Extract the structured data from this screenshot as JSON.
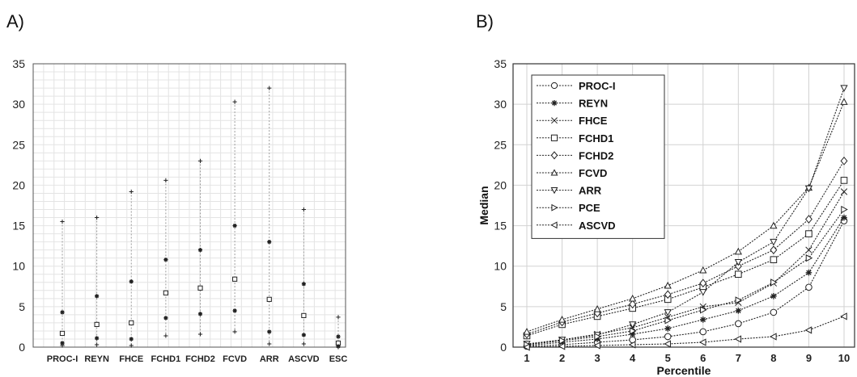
{
  "panel_a": {
    "label": "A)"
  },
  "panel_b": {
    "label": "B)"
  },
  "chart_data": [
    {
      "type": "scatter",
      "title": "",
      "xlabel": "",
      "ylabel": "",
      "ylim": [
        0,
        35
      ],
      "yticks": [
        0,
        5,
        10,
        15,
        20,
        25,
        30,
        35
      ],
      "grid": true,
      "categories": [
        "PROC-I",
        "REYN",
        "FHCE",
        "FCHD1",
        "FCHD2",
        "FCVD",
        "ARR",
        "ASCVD",
        "ESC"
      ],
      "series": [
        {
          "marker": "plus",
          "values": [
            15.5,
            16.0,
            19.2,
            20.6,
            23.0,
            30.3,
            32.0,
            17.0,
            3.7
          ]
        },
        {
          "marker": "star",
          "values": [
            4.3,
            6.3,
            8.1,
            10.8,
            12.0,
            15.0,
            13.0,
            7.8,
            1.3
          ]
        },
        {
          "marker": "square",
          "values": [
            1.7,
            2.8,
            3.0,
            6.7,
            7.3,
            8.4,
            5.9,
            3.9,
            0.5
          ]
        },
        {
          "marker": "star",
          "values": [
            0.5,
            1.1,
            1.0,
            3.6,
            4.1,
            4.5,
            1.9,
            1.5,
            0.1
          ]
        },
        {
          "marker": "plus",
          "values": [
            0.2,
            0.3,
            0.2,
            1.4,
            1.6,
            1.9,
            0.4,
            0.4,
            0.0
          ]
        }
      ]
    },
    {
      "type": "line",
      "title": "",
      "xlabel": "Percentile",
      "ylabel": "Median",
      "xlim": [
        1,
        10
      ],
      "ylim": [
        0,
        35
      ],
      "xticks": [
        1,
        2,
        3,
        4,
        5,
        6,
        7,
        8,
        9,
        10
      ],
      "yticks": [
        0,
        5,
        10,
        15,
        20,
        25,
        30,
        35
      ],
      "grid": true,
      "legend": "top-left",
      "x": [
        1,
        2,
        3,
        4,
        5,
        6,
        7,
        8,
        9,
        10
      ],
      "series": [
        {
          "name": "PROC-I",
          "marker": "circle",
          "values": [
            0.1,
            0.3,
            0.6,
            0.9,
            1.3,
            1.9,
            2.9,
            4.3,
            7.4,
            15.6
          ]
        },
        {
          "name": "REYN",
          "marker": "star",
          "values": [
            0.2,
            0.6,
            1.0,
            1.6,
            2.3,
            3.4,
            4.5,
            6.3,
            9.2,
            16.0
          ]
        },
        {
          "name": "FHCE",
          "marker": "x",
          "values": [
            0.3,
            0.9,
            1.6,
            2.4,
            3.7,
            5.0,
            5.5,
            7.9,
            12.0,
            19.2
          ]
        },
        {
          "name": "FCHD1",
          "marker": "square",
          "values": [
            1.4,
            2.8,
            3.8,
            4.8,
            5.9,
            7.4,
            9.0,
            10.8,
            14.0,
            20.6
          ]
        },
        {
          "name": "FCHD2",
          "marker": "diamond",
          "values": [
            1.6,
            3.1,
            4.2,
            5.3,
            6.5,
            7.9,
            10.0,
            12.0,
            15.8,
            23.0
          ]
        },
        {
          "name": "FCVD",
          "marker": "triangle-up",
          "values": [
            1.9,
            3.4,
            4.7,
            6.0,
            7.6,
            9.5,
            11.8,
            15.0,
            19.7,
            30.3
          ]
        },
        {
          "name": "ARR",
          "marker": "triangle-down",
          "values": [
            0.4,
            0.9,
            1.5,
            2.8,
            4.3,
            6.8,
            10.5,
            13.0,
            19.6,
            32.0
          ]
        },
        {
          "name": "PCE",
          "marker": "triangle-right",
          "values": [
            0.3,
            0.8,
            1.3,
            2.0,
            3.3,
            4.6,
            5.8,
            8.0,
            11.0,
            17.0
          ]
        },
        {
          "name": "ASCVD",
          "marker": "triangle-left",
          "values": [
            0.0,
            0.1,
            0.2,
            0.3,
            0.4,
            0.6,
            1.0,
            1.3,
            2.1,
            3.8
          ]
        }
      ]
    }
  ]
}
